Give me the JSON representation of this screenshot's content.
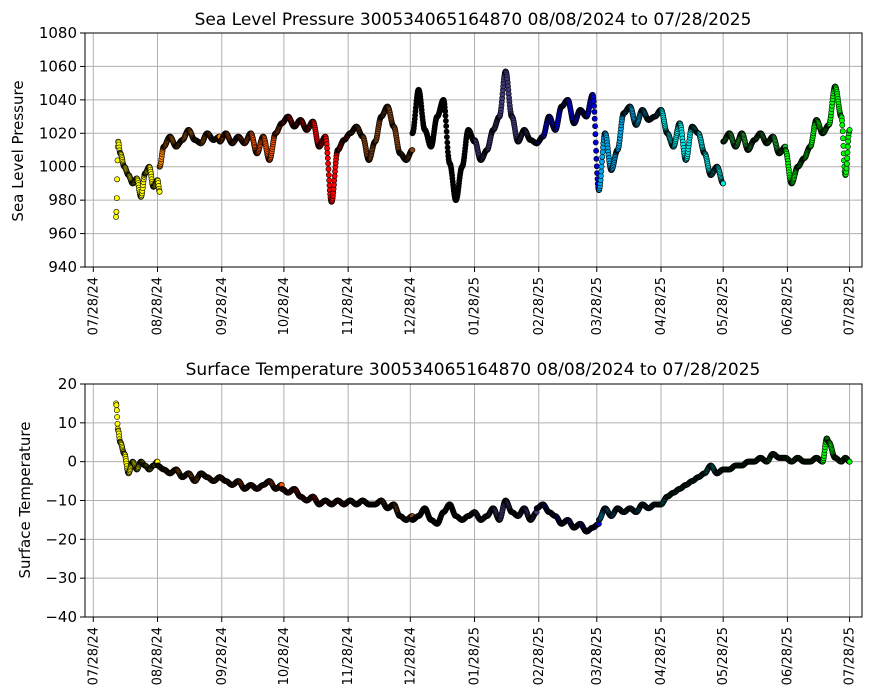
{
  "chart_data": [
    {
      "type": "scatter",
      "title": "Sea Level Pressure 300534065164870  08/08/2024 to 07/28/2025",
      "xlabel": "",
      "ylabel": "Sea Level Pressure",
      "ylim": [
        940,
        1080
      ],
      "yticks": [
        940,
        960,
        980,
        1000,
        1020,
        1040,
        1060,
        1080
      ],
      "xlim": [
        "2024-07-24",
        "2025-08-03"
      ],
      "xticks": [
        "07/28/24",
        "08/28/24",
        "09/28/24",
        "10/28/24",
        "11/28/24",
        "12/28/24",
        "01/28/25",
        "02/28/25",
        "03/28/25",
        "04/28/25",
        "05/28/25",
        "06/28/25",
        "07/28/25"
      ],
      "grid": true,
      "series": [
        {
          "color": "#ffff00",
          "x": [
            "2024-08-08",
            "2024-08-09",
            "2024-08-10",
            "2024-08-12",
            "2024-08-14",
            "2024-08-16",
            "2024-08-18",
            "2024-08-20",
            "2024-08-22",
            "2024-08-24",
            "2024-08-26",
            "2024-08-28",
            "2024-08-29"
          ],
          "y": [
            970,
            1015,
            1008,
            1000,
            995,
            990,
            993,
            982,
            996,
            1000,
            988,
            992,
            985
          ]
        },
        {
          "color": "#ff8800",
          "x": [
            "2024-08-29",
            "2024-08-31",
            "2024-09-03",
            "2024-09-06",
            "2024-09-09",
            "2024-09-12",
            "2024-09-15",
            "2024-09-18",
            "2024-09-21",
            "2024-09-24",
            "2024-09-27"
          ],
          "y": [
            1000,
            1012,
            1018,
            1012,
            1016,
            1022,
            1016,
            1014,
            1020,
            1016,
            1018
          ]
        },
        {
          "color": "#ff5500",
          "x": [
            "2024-09-27",
            "2024-09-30",
            "2024-10-03",
            "2024-10-06",
            "2024-10-09",
            "2024-10-12",
            "2024-10-15",
            "2024-10-18",
            "2024-10-21",
            "2024-10-24",
            "2024-10-27"
          ],
          "y": [
            1015,
            1020,
            1014,
            1018,
            1014,
            1020,
            1008,
            1018,
            1004,
            1020,
            1026
          ]
        },
        {
          "color": "#ff0000",
          "x": [
            "2024-10-27",
            "2024-10-30",
            "2024-11-02",
            "2024-11-05",
            "2024-11-08",
            "2024-11-11",
            "2024-11-14",
            "2024-11-17",
            "2024-11-20",
            "2024-11-23",
            "2024-11-26",
            "2024-11-29"
          ],
          "y": [
            1026,
            1030,
            1024,
            1028,
            1022,
            1027,
            1012,
            1018,
            979,
            1010,
            1016,
            1020
          ]
        },
        {
          "color": "#8b4513",
          "x": [
            "2024-11-29",
            "2024-12-02",
            "2024-12-05",
            "2024-12-08",
            "2024-12-11",
            "2024-12-14",
            "2024-12-17",
            "2024-12-20",
            "2024-12-23",
            "2024-12-26",
            "2024-12-29"
          ],
          "y": [
            1020,
            1024,
            1018,
            1004,
            1015,
            1030,
            1036,
            1024,
            1008,
            1004,
            1010
          ]
        },
        {
          "color": "#000000",
          "x": [
            "2024-12-29",
            "2025-01-01",
            "2025-01-04",
            "2025-01-07",
            "2025-01-10",
            "2025-01-13",
            "2025-01-16",
            "2025-01-19",
            "2025-01-22",
            "2025-01-25",
            "2025-01-28"
          ],
          "y": [
            1020,
            1046,
            1022,
            1012,
            1030,
            1040,
            1002,
            980,
            1000,
            1022,
            1015
          ]
        },
        {
          "color": "#3f3a7a",
          "x": [
            "2025-01-28",
            "2025-01-31",
            "2025-02-03",
            "2025-02-06",
            "2025-02-09",
            "2025-02-12",
            "2025-02-15",
            "2025-02-18",
            "2025-02-21",
            "2025-02-24",
            "2025-02-27"
          ],
          "y": [
            1016,
            1004,
            1010,
            1022,
            1030,
            1057,
            1030,
            1015,
            1022,
            1016,
            1014
          ]
        },
        {
          "color": "#0000dd",
          "x": [
            "2025-02-27",
            "2025-03-02",
            "2025-03-05",
            "2025-03-08",
            "2025-03-11",
            "2025-03-14",
            "2025-03-17",
            "2025-03-20",
            "2025-03-23",
            "2025-03-26",
            "2025-03-29"
          ],
          "y": [
            1014,
            1018,
            1030,
            1022,
            1036,
            1040,
            1026,
            1034,
            1030,
            1043,
            986
          ]
        },
        {
          "color": "#00aaee",
          "x": [
            "2025-03-29",
            "2025-04-01",
            "2025-04-04",
            "2025-04-07",
            "2025-04-10",
            "2025-04-13",
            "2025-04-16",
            "2025-04-19",
            "2025-04-22",
            "2025-04-25",
            "2025-04-28"
          ],
          "y": [
            986,
            1020,
            998,
            1010,
            1032,
            1036,
            1025,
            1034,
            1028,
            1030,
            1034
          ]
        },
        {
          "color": "#00e8e8",
          "x": [
            "2025-04-28",
            "2025-05-01",
            "2025-05-04",
            "2025-05-07",
            "2025-05-10",
            "2025-05-13",
            "2025-05-16",
            "2025-05-19",
            "2025-05-22",
            "2025-05-25",
            "2025-05-28"
          ],
          "y": [
            1034,
            1020,
            1012,
            1026,
            1004,
            1024,
            1020,
            1008,
            995,
            1000,
            990
          ]
        },
        {
          "color": "#22bb33",
          "x": [
            "2025-05-28",
            "2025-05-31",
            "2025-06-03",
            "2025-06-06",
            "2025-06-09",
            "2025-06-12",
            "2025-06-15",
            "2025-06-18",
            "2025-06-21",
            "2025-06-24",
            "2025-06-27"
          ],
          "y": [
            1015,
            1020,
            1012,
            1020,
            1010,
            1016,
            1020,
            1014,
            1018,
            1008,
            1012
          ]
        },
        {
          "color": "#00ff00",
          "x": [
            "2025-06-27",
            "2025-06-30",
            "2025-07-03",
            "2025-07-06",
            "2025-07-09",
            "2025-07-12",
            "2025-07-15",
            "2025-07-18",
            "2025-07-21",
            "2025-07-24",
            "2025-07-26",
            "2025-07-28"
          ],
          "y": [
            1010,
            990,
            1000,
            1005,
            1012,
            1028,
            1020,
            1025,
            1048,
            1030,
            995,
            1022
          ]
        }
      ]
    },
    {
      "type": "scatter",
      "title": "Surface Temperature 300534065164870  08/08/2024 to 07/28/2025",
      "xlabel": "",
      "ylabel": "Surface Temperature",
      "ylim": [
        -40,
        20
      ],
      "yticks": [
        -40,
        -30,
        -20,
        -10,
        0,
        10,
        20
      ],
      "xlim": [
        "2024-07-24",
        "2025-08-03"
      ],
      "xticks": [
        "07/28/24",
        "08/28/24",
        "09/28/24",
        "10/28/24",
        "11/28/24",
        "12/28/24",
        "01/28/25",
        "02/28/25",
        "03/28/25",
        "04/28/25",
        "05/28/25",
        "06/28/25",
        "07/28/25"
      ],
      "grid": true,
      "series": [
        {
          "color": "#ffff00",
          "x": [
            "2024-08-08",
            "2024-08-09",
            "2024-08-10",
            "2024-08-12",
            "2024-08-14",
            "2024-08-16",
            "2024-08-18",
            "2024-08-20",
            "2024-08-22",
            "2024-08-24",
            "2024-08-26",
            "2024-08-28"
          ],
          "y": [
            15,
            8,
            5,
            2,
            -3,
            0,
            -2,
            0,
            -1,
            -2,
            -1,
            0
          ]
        },
        {
          "color": "#ff8800",
          "x": [
            "2024-08-28",
            "2024-08-31",
            "2024-09-03",
            "2024-09-06",
            "2024-09-09",
            "2024-09-12",
            "2024-09-15",
            "2024-09-18",
            "2024-09-21",
            "2024-09-24",
            "2024-09-27"
          ],
          "y": [
            -1,
            -2,
            -3,
            -2,
            -4,
            -3,
            -5,
            -3,
            -4,
            -5,
            -4
          ]
        },
        {
          "color": "#ff5500",
          "x": [
            "2024-09-27",
            "2024-09-30",
            "2024-10-03",
            "2024-10-06",
            "2024-10-09",
            "2024-10-12",
            "2024-10-15",
            "2024-10-18",
            "2024-10-21",
            "2024-10-24",
            "2024-10-27"
          ],
          "y": [
            -4,
            -5,
            -6,
            -5,
            -7,
            -6,
            -7,
            -6,
            -5,
            -7,
            -6
          ]
        },
        {
          "color": "#ff0000",
          "x": [
            "2024-10-27",
            "2024-10-30",
            "2024-11-02",
            "2024-11-05",
            "2024-11-08",
            "2024-11-11",
            "2024-11-14",
            "2024-11-17",
            "2024-11-20",
            "2024-11-23",
            "2024-11-26",
            "2024-11-29"
          ],
          "y": [
            -7,
            -8,
            -7,
            -9,
            -10,
            -9,
            -11,
            -10,
            -11,
            -10,
            -11,
            -10
          ]
        },
        {
          "color": "#8b4513",
          "x": [
            "2024-11-29",
            "2024-12-02",
            "2024-12-05",
            "2024-12-08",
            "2024-12-11",
            "2024-12-14",
            "2024-12-17",
            "2024-12-20",
            "2024-12-23",
            "2024-12-26",
            "2024-12-29"
          ],
          "y": [
            -10,
            -11,
            -10,
            -11,
            -11,
            -10,
            -12,
            -11,
            -14,
            -15,
            -14
          ]
        },
        {
          "color": "#000000",
          "x": [
            "2024-12-29",
            "2025-01-01",
            "2025-01-04",
            "2025-01-07",
            "2025-01-10",
            "2025-01-13",
            "2025-01-16",
            "2025-01-19",
            "2025-01-22",
            "2025-01-25",
            "2025-01-28"
          ],
          "y": [
            -15,
            -14,
            -12,
            -15,
            -16,
            -13,
            -11,
            -14,
            -15,
            -14,
            -13
          ]
        },
        {
          "color": "#3f3a7a",
          "x": [
            "2025-01-28",
            "2025-01-31",
            "2025-02-03",
            "2025-02-06",
            "2025-02-09",
            "2025-02-12",
            "2025-02-15",
            "2025-02-18",
            "2025-02-21",
            "2025-02-24",
            "2025-02-27"
          ],
          "y": [
            -13,
            -15,
            -14,
            -12,
            -15,
            -10,
            -13,
            -14,
            -12,
            -15,
            -13
          ]
        },
        {
          "color": "#0000dd",
          "x": [
            "2025-02-27",
            "2025-03-02",
            "2025-03-05",
            "2025-03-08",
            "2025-03-11",
            "2025-03-14",
            "2025-03-17",
            "2025-03-20",
            "2025-03-23",
            "2025-03-26",
            "2025-03-29"
          ],
          "y": [
            -12,
            -11,
            -13,
            -14,
            -16,
            -15,
            -17,
            -16,
            -18,
            -17,
            -16
          ]
        },
        {
          "color": "#00aaee",
          "x": [
            "2025-03-29",
            "2025-04-01",
            "2025-04-04",
            "2025-04-07",
            "2025-04-10",
            "2025-04-13",
            "2025-04-16",
            "2025-04-19",
            "2025-04-22",
            "2025-04-25",
            "2025-04-28"
          ],
          "y": [
            -15,
            -12,
            -14,
            -12,
            -13,
            -12,
            -13,
            -11,
            -12,
            -11,
            -11
          ]
        },
        {
          "color": "#00e8e8",
          "x": [
            "2025-04-28",
            "2025-05-01",
            "2025-05-04",
            "2025-05-07",
            "2025-05-10",
            "2025-05-13",
            "2025-05-16",
            "2025-05-19",
            "2025-05-22",
            "2025-05-25",
            "2025-05-28"
          ],
          "y": [
            -11,
            -9,
            -8,
            -7,
            -6,
            -5,
            -4,
            -3,
            -1,
            -3,
            -2
          ]
        },
        {
          "color": "#22bb33",
          "x": [
            "2025-05-28",
            "2025-05-31",
            "2025-06-03",
            "2025-06-06",
            "2025-06-09",
            "2025-06-12",
            "2025-06-15",
            "2025-06-18",
            "2025-06-21",
            "2025-06-24",
            "2025-06-27"
          ],
          "y": [
            -2,
            -2,
            -1,
            -1,
            0,
            0,
            1,
            0,
            2,
            1,
            1
          ]
        },
        {
          "color": "#00ff00",
          "x": [
            "2025-06-27",
            "2025-06-30",
            "2025-07-03",
            "2025-07-06",
            "2025-07-09",
            "2025-07-12",
            "2025-07-15",
            "2025-07-17",
            "2025-07-18",
            "2025-07-21",
            "2025-07-24",
            "2025-07-26",
            "2025-07-28"
          ],
          "y": [
            1,
            0,
            1,
            0,
            0,
            1,
            0,
            6,
            5,
            1,
            0,
            1,
            0
          ]
        }
      ]
    }
  ]
}
